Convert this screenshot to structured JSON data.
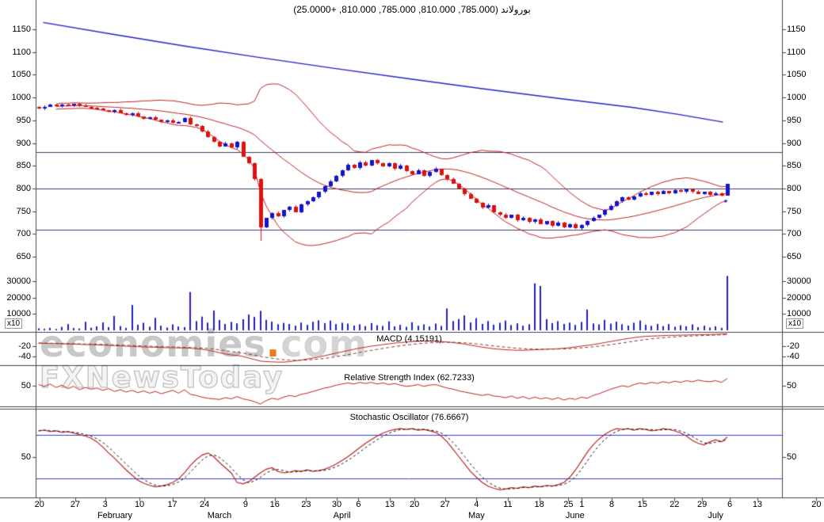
{
  "header": {
    "title": "بورولاند (785.000, 810.000, 785.000, 810.000, +25.0000)"
  },
  "watermark": {
    "brand": "economies",
    "dot": ".",
    "tld": "com",
    "tagline": "FXNewsToday"
  },
  "chart_data": {
    "type": "candlestick-multi-panel",
    "panels": [
      "price",
      "volume",
      "macd",
      "rsi",
      "stochastic"
    ],
    "symbol": "بورولاند",
    "quote": {
      "open": 785.0,
      "high": 810.0,
      "low": 785.0,
      "close": 810.0,
      "change": "+25.0000"
    },
    "price_ticks": [
      1150,
      1100,
      1050,
      1000,
      950,
      900,
      850,
      800,
      750,
      700,
      650
    ],
    "price_levels": [
      880,
      800,
      710
    ],
    "closes": [
      976,
      980,
      984,
      981,
      985,
      982,
      986,
      983,
      980,
      977,
      975,
      972,
      969,
      972,
      966,
      962,
      965,
      958,
      954,
      957,
      951,
      947,
      950,
      944,
      947,
      955,
      941,
      938,
      926,
      913,
      903,
      893,
      900,
      890,
      902,
      870,
      855,
      820,
      715,
      735,
      746,
      738,
      752,
      760,
      748,
      765,
      772,
      780,
      792,
      805,
      816,
      828,
      840,
      852,
      845,
      858,
      850,
      862,
      855,
      848,
      856,
      843,
      851,
      838,
      832,
      840,
      828,
      836,
      843,
      830,
      821,
      811,
      800,
      788,
      778,
      768,
      758,
      763,
      748,
      742,
      735,
      742,
      730,
      736,
      726,
      732,
      722,
      728,
      718,
      725,
      715,
      722,
      712,
      720,
      728,
      735,
      742,
      752,
      762,
      772,
      780,
      775,
      783,
      790,
      786,
      792,
      788,
      794,
      790,
      796,
      792,
      798,
      793,
      788,
      792,
      786,
      790,
      785,
      810
    ],
    "overrides": {
      "38": {
        "low": 685
      },
      "118": {
        "open": 785,
        "high": 810,
        "low": 785,
        "close": 810
      }
    },
    "volumes": [
      1200,
      900,
      1500,
      800,
      2100,
      3800,
      1400,
      1100,
      5200,
      1600,
      2400,
      4800,
      1900,
      8800,
      2600,
      1500,
      15400,
      3400,
      4600,
      2200,
      7600,
      2800,
      1700,
      3600,
      2300,
      1900,
      23400,
      5600,
      8400,
      4700,
      12100,
      6300,
      3900,
      5100,
      4300,
      6800,
      9700,
      8200,
      11900,
      6400,
      5300,
      3700,
      4500,
      3900,
      2800,
      4700,
      3300,
      5200,
      6100,
      4400,
      5900,
      3800,
      4600,
      4100,
      2900,
      3700,
      2600,
      4400,
      3100,
      2700,
      5500,
      2400,
      3300,
      2100,
      4900,
      2800,
      3600,
      2300,
      4100,
      2700,
      13300,
      5600,
      6900,
      9100,
      4800,
      7400,
      3900,
      5700,
      3400,
      4600,
      5900,
      3200,
      4300,
      2800,
      3700,
      28700,
      27100,
      6800,
      4400,
      5600,
      3900,
      4700,
      3300,
      5100,
      12700,
      4200,
      3600,
      6400,
      4100,
      5300,
      3700,
      2900,
      4600,
      6000,
      3400,
      2700,
      3900,
      2600,
      3800,
      2200,
      3100,
      2500,
      3600,
      1900,
      2800,
      1700,
      2400,
      1500,
      33200
    ],
    "volume_ticks": [
      30000,
      20000,
      10000
    ],
    "volume_multiplier_label": "x10",
    "bollinger": {
      "period": 20,
      "mult": 2
    },
    "long_ma_points": [
      [
        0.01,
        1165
      ],
      [
        0.1,
        1140
      ],
      [
        0.2,
        1113
      ],
      [
        0.3,
        1088
      ],
      [
        0.4,
        1064
      ],
      [
        0.5,
        1041
      ],
      [
        0.6,
        1019
      ],
      [
        0.7,
        998
      ],
      [
        0.8,
        978
      ],
      [
        0.86,
        963
      ],
      [
        0.92,
        946
      ]
    ],
    "macd": {
      "title": "MACD (4.15191)",
      "ticks": [
        -20,
        -40
      ],
      "signal": 9,
      "values": [
        -14,
        -14.5,
        -15,
        -15,
        -15.5,
        -16,
        -16,
        -16.5,
        -17,
        -17,
        -17.5,
        -18,
        -18.5,
        -19,
        -19.5,
        -20,
        -20.5,
        -21,
        -21.5,
        -22,
        -22,
        -22.5,
        -23,
        -23,
        -23.5,
        -23.5,
        -24,
        -25,
        -26,
        -28,
        -30,
        -33,
        -35,
        -37,
        -38,
        -40,
        -43,
        -46,
        -49,
        -50,
        -50.5,
        -51,
        -51,
        -50,
        -48.5,
        -47,
        -45,
        -43,
        -41,
        -38.5,
        -36,
        -33.5,
        -31,
        -28.5,
        -26,
        -24,
        -22,
        -20,
        -18.5,
        -17,
        -15.5,
        -14,
        -13,
        -12,
        -11,
        -10.5,
        -10,
        -10,
        -10.5,
        -11,
        -12,
        -13,
        -14.5,
        -16,
        -18,
        -20,
        -22,
        -23.5,
        -25,
        -26,
        -27,
        -27.5,
        -28,
        -28,
        -27.5,
        -27,
        -26.5,
        -26,
        -25.5,
        -25,
        -24,
        -23,
        -21.5,
        -20,
        -18.5,
        -17,
        -15,
        -13,
        -11,
        -9,
        -7,
        -5,
        -3.5,
        -2,
        -1,
        -0.5,
        0,
        0.5,
        1,
        1,
        1.5,
        1.5,
        2,
        2,
        2.5,
        2.5,
        3,
        3.5,
        4.15
      ]
    },
    "rsi": {
      "title": "Relative Strength Index (62.7233)",
      "ticks": [
        50
      ],
      "values": [
        52,
        49,
        53,
        47,
        51,
        45,
        49,
        43,
        47,
        44,
        46,
        42,
        45,
        40,
        43,
        39,
        42,
        38,
        41,
        37,
        40,
        36,
        39,
        42,
        37,
        43,
        35,
        33,
        30,
        28,
        27,
        26,
        29,
        27,
        31,
        27,
        25,
        22,
        18,
        24,
        28,
        26,
        30,
        33,
        31,
        35,
        37,
        40,
        43,
        46,
        48,
        51,
        53,
        55,
        53,
        56,
        54,
        56,
        53,
        55,
        52,
        54,
        51,
        49,
        50,
        52,
        49,
        51,
        52,
        49,
        46,
        44,
        41,
        39,
        37,
        35,
        33,
        35,
        32,
        31,
        29,
        32,
        28,
        31,
        27,
        30,
        27,
        29,
        26,
        29,
        25,
        28,
        26,
        30,
        28,
        33,
        36,
        40,
        44,
        47,
        50,
        48,
        52,
        55,
        53,
        56,
        54,
        57,
        55,
        58,
        56,
        59,
        57,
        60,
        58,
        57,
        59,
        56,
        62.7
      ]
    },
    "stoch": {
      "title": "Stochastic Oscillator (76.6667)",
      "ticks": [
        50
      ],
      "ref_lines": [
        80,
        20
      ],
      "k_values": [
        85,
        86,
        84,
        85,
        83,
        84,
        82,
        80,
        78,
        75,
        70,
        63,
        55,
        48,
        40,
        32,
        25,
        18,
        14,
        11,
        9,
        10,
        12,
        15,
        20,
        28,
        38,
        46,
        52,
        55,
        50,
        42,
        35,
        28,
        15,
        13,
        16,
        22,
        28,
        33,
        35,
        30,
        28,
        29,
        31,
        30,
        32,
        30,
        31,
        33,
        36,
        40,
        45,
        50,
        56,
        62,
        68,
        73,
        78,
        82,
        85,
        87,
        88,
        87,
        88,
        86,
        87,
        85,
        83,
        78,
        70,
        60,
        50,
        40,
        30,
        22,
        15,
        10,
        7,
        5,
        6,
        8,
        7,
        9,
        8,
        10,
        9,
        11,
        10,
        12,
        15,
        22,
        32,
        44,
        56,
        66,
        74,
        80,
        85,
        88,
        87,
        88,
        86,
        88,
        87,
        85,
        86,
        88,
        87,
        85,
        82,
        78,
        72,
        68,
        66,
        70,
        73,
        70,
        76.67
      ]
    },
    "x_axis": {
      "day_labels": [
        {
          "f": 0.005,
          "t": "20"
        },
        {
          "f": 0.053,
          "t": "27"
        },
        {
          "f": 0.093,
          "t": "3"
        },
        {
          "f": 0.139,
          "t": "10"
        },
        {
          "f": 0.183,
          "t": "17"
        },
        {
          "f": 0.226,
          "t": "24"
        },
        {
          "f": 0.281,
          "t": "9"
        },
        {
          "f": 0.32,
          "t": "16"
        },
        {
          "f": 0.362,
          "t": "23"
        },
        {
          "f": 0.403,
          "t": "30"
        },
        {
          "f": 0.432,
          "t": "6"
        },
        {
          "f": 0.474,
          "t": "13"
        },
        {
          "f": 0.507,
          "t": "20"
        },
        {
          "f": 0.548,
          "t": "27"
        },
        {
          "f": 0.59,
          "t": "4"
        },
        {
          "f": 0.632,
          "t": "11"
        },
        {
          "f": 0.674,
          "t": "18"
        },
        {
          "f": 0.713,
          "t": "25"
        },
        {
          "f": 0.731,
          "t": "1"
        },
        {
          "f": 0.771,
          "t": "8"
        },
        {
          "f": 0.812,
          "t": "15"
        },
        {
          "f": 0.855,
          "t": "22"
        },
        {
          "f": 0.892,
          "t": "29"
        },
        {
          "f": 0.929,
          "t": "6"
        },
        {
          "f": 0.966,
          "t": "13"
        },
        {
          "f": 1.045,
          "t": "20"
        }
      ],
      "month_labels": [
        {
          "f": 0.106,
          "t": "February"
        },
        {
          "f": 0.246,
          "t": "March"
        },
        {
          "f": 0.41,
          "t": "April"
        },
        {
          "f": 0.59,
          "t": "May"
        },
        {
          "f": 0.722,
          "t": "June"
        },
        {
          "f": 0.91,
          "t": "July"
        }
      ]
    },
    "colors": {
      "up_candle": "#1414cc",
      "down_candle": "#dd1111",
      "volume_bar": "#2020bb",
      "bollinger": "#bb2222",
      "long_ma": "#2222cc",
      "level_line": "#3c3c64",
      "separator": "#444444",
      "macd_line": "#bb2222",
      "macd_signal": "#883333",
      "rsi_line": "#bb2222",
      "stoch_k": "#bb2222",
      "stoch_d": "#111111",
      "stoch_ref": "#3a3adf"
    }
  }
}
